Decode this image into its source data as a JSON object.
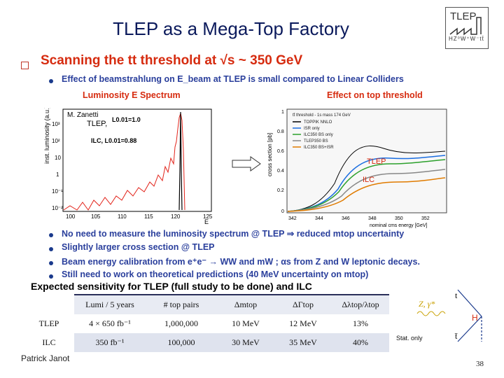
{
  "title": "TLEP as a Mega-Top Factory",
  "logo": {
    "top": "TLEP",
    "bottom": "HZ⁰W⁺W⁻tt̄"
  },
  "heading": "Scanning the tt threshold at √s ~ 350 GeV",
  "bullets_top": [
    "Effect of beamstrahlung on E_beam at TLEP is small compared to Linear Colliders"
  ],
  "sub_left": "Luminosity E  Spectrum",
  "sub_right": "Effect on top threshold",
  "left_plot": {
    "ylabel": "inst. luminosity (a.u.)",
    "author": "M. Zanetti",
    "tlep_label": "TLEP,",
    "l001_tlep": "L0.01=1.0",
    "ilc_label": "ILC, L0.01=0.88",
    "xlabel": "E",
    "xticks": [
      "100",
      "105",
      "110",
      "115",
      "120",
      "125"
    ],
    "yticks": [
      "10³",
      "10²",
      "10",
      "1",
      "10⁻¹",
      "10⁻²"
    ]
  },
  "right_plot": {
    "ylabel": "cross section [pb]",
    "xlabel": "nominal cms energy [GeV]",
    "legend": [
      "tt̄ threshold - 1s mass 174 GeV",
      "TOPPIK NNLO",
      "ISR only",
      "ILC350 BS only",
      "TLEP350 BS",
      "ILC350 BS+ISR"
    ],
    "label_tlep": "TLEP",
    "label_ilc": "ILC",
    "xticks": [
      "342",
      "344",
      "346",
      "348",
      "350",
      "352"
    ],
    "yticks": [
      "1",
      "0.8",
      "0.6",
      "0.4",
      "0.2",
      "0"
    ]
  },
  "bullets_bottom": [
    "No need to measure the luminosity spectrum @ TLEP ⇒ reduced mtop uncertainty",
    "Slightly larger cross section @ TLEP",
    "Beam energy calibration from e⁺e⁻ → WW and mW ; αs from Z and W leptonic decays.",
    "Still need to work on theoretical predictions (40 MeV uncertainty on mtop)"
  ],
  "expected": "Expected  sensitivity for TLEP (full study to be done) and ILC",
  "table": {
    "headers": [
      "Lumi / 5 years",
      "# top pairs",
      "Δmtop",
      "ΔΓtop",
      "Δλtop/λtop"
    ],
    "rows": [
      {
        "label": "TLEP",
        "cells": [
          "4 × 650 fb⁻¹",
          "1,000,000",
          "10 MeV",
          "12 MeV",
          "13%"
        ]
      },
      {
        "label": "ILC",
        "cells": [
          "350 fb⁻¹",
          "100,000",
          "30 MeV",
          "35 MeV",
          "40%"
        ]
      }
    ]
  },
  "feynman": {
    "t_top": "t",
    "t_bot": "t̄",
    "zg": "Z, γ*",
    "h": "H",
    "stat": "Stat. only"
  },
  "footer": {
    "author": "Patrick Janot",
    "page": "38"
  }
}
